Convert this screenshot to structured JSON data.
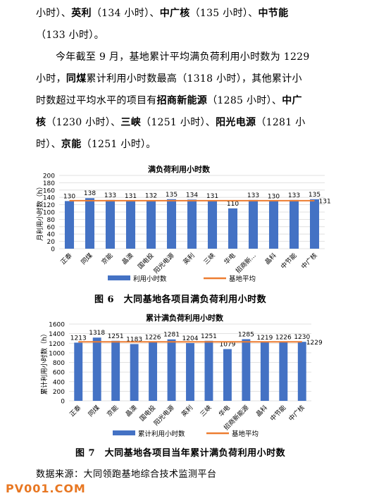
{
  "para1": {
    "line1": [
      {
        "t": "小时）、",
        "b": false
      },
      {
        "t": "英利",
        "b": true
      },
      {
        "t": "（134 小时）、",
        "b": false
      },
      {
        "t": "中广核",
        "b": true
      },
      {
        "t": "（135 小时）、",
        "b": false
      },
      {
        "t": "中节能",
        "b": true
      }
    ],
    "line2": [
      {
        "t": "（133 小时）。",
        "b": false
      }
    ]
  },
  "para2": {
    "line1": [
      {
        "t": "今年截至 9 月，基地累计平均满负荷利用小时数为 1229",
        "b": false
      }
    ],
    "line2": [
      {
        "t": "小时，",
        "b": false
      },
      {
        "t": "同煤",
        "b": true
      },
      {
        "t": "累计利用小时数最高（1318 小时），其他累计小",
        "b": false
      }
    ],
    "line3": [
      {
        "t": "时数超过平均水平的项目有",
        "b": false
      },
      {
        "t": "招商新能源",
        "b": true
      },
      {
        "t": "（1285 小时）、",
        "b": false
      },
      {
        "t": "中广",
        "b": true
      }
    ],
    "line4": [
      {
        "t": "核",
        "b": true
      },
      {
        "t": "（1230 小时）、",
        "b": false
      },
      {
        "t": "三峡",
        "b": true
      },
      {
        "t": "（1251 小时）、",
        "b": false
      },
      {
        "t": "阳光电源",
        "b": true
      },
      {
        "t": "（1281 小",
        "b": false
      }
    ],
    "line5": [
      {
        "t": "时）、",
        "b": false
      },
      {
        "t": "京能",
        "b": true
      },
      {
        "t": "（1251 小时）。",
        "b": false
      }
    ]
  },
  "chart_data": [
    {
      "type": "bar",
      "title": "满负荷利用小时数",
      "ylabel": "月利用小时数（h）",
      "ylim": [
        0,
        200
      ],
      "yticks": [
        0,
        20,
        40,
        60,
        80,
        100,
        120,
        140,
        160,
        180,
        200
      ],
      "categories": [
        "正泰",
        "同煤",
        "京能",
        "晶澳",
        "国电投",
        "阳光电源",
        "英利",
        "三峡",
        "华电",
        "招商新...",
        "晶科",
        "中节能",
        "中广核"
      ],
      "series": [
        {
          "name": "利用小时数",
          "values": [
            130,
            138,
            133,
            131,
            132,
            135,
            134,
            131,
            110,
            133,
            130,
            133,
            135
          ]
        },
        {
          "name": "基地平均",
          "values": [
            131,
            131,
            131,
            131,
            131,
            131,
            131,
            131,
            131,
            131,
            131,
            131,
            131
          ]
        }
      ],
      "avg_label": "131",
      "legend": "bottom",
      "colors": {
        "bar": "#4472c4",
        "line": "#ed7d31"
      }
    },
    {
      "type": "bar",
      "title": "累计满负荷利用小时数",
      "ylabel": "累计利用小时数（h）",
      "ylim": [
        0,
        1600
      ],
      "yticks": [
        0,
        200,
        400,
        600,
        800,
        1000,
        1200,
        1400,
        1600
      ],
      "categories": [
        "正泰",
        "同煤",
        "京能",
        "晶澳",
        "国电投",
        "阳光电源",
        "英利",
        "三峡",
        "华电",
        "招商新能源",
        "晶科",
        "中节能",
        "中广核"
      ],
      "series": [
        {
          "name": "累计利用小时数",
          "values": [
            1213,
            1318,
            1251,
            1183,
            1226,
            1281,
            1204,
            1251,
            1079,
            1285,
            1219,
            1226,
            1230
          ]
        },
        {
          "name": "基地平均",
          "values": [
            1229,
            1229,
            1229,
            1229,
            1229,
            1229,
            1229,
            1229,
            1229,
            1229,
            1229,
            1229,
            1229
          ]
        }
      ],
      "avg_label": "1229",
      "legend": "bottom",
      "colors": {
        "bar": "#4472c4",
        "line": "#ed7d31"
      }
    }
  ],
  "captions": {
    "fig6": "图 6　大同基地各项目满负荷利用小时数",
    "fig7": "图 7　大同基地各项目当年累计满负荷利用小时数"
  },
  "source": "数据来源：大同领跑基地综合技术监测平台",
  "watermark": "PV001.COM"
}
